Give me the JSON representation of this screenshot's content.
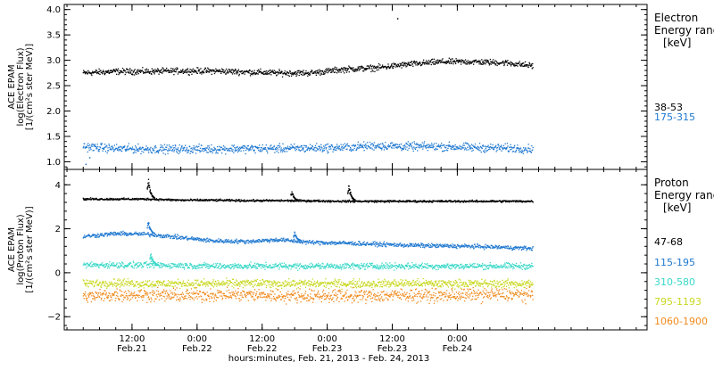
{
  "chart_data": [
    {
      "type": "scatter",
      "panel": "electron",
      "ylabel": [
        "ACE EPAM",
        "log(Electron Flux)",
        "[1/(cm²s ster MeV)]"
      ],
      "ylim": [
        0.85,
        4.1
      ],
      "yticks": [
        "1.0",
        "1.5",
        "2.0",
        "2.5",
        "3.0",
        "3.5",
        "4.0"
      ],
      "ytick_values": [
        1.0,
        1.5,
        2.0,
        2.5,
        3.0,
        3.5,
        4.0
      ],
      "legend_title": [
        "Electron",
        "Energy ranges",
        "[keV]"
      ],
      "legend_placement": "right",
      "series": [
        {
          "name": "38-53",
          "color": "#000000",
          "x": [
            0,
            6,
            12,
            18,
            24,
            30,
            36,
            42,
            48,
            54,
            60,
            66,
            72,
            78,
            83
          ],
          "values": [
            2.75,
            2.78,
            2.78,
            2.79,
            2.79,
            2.77,
            2.75,
            2.75,
            2.82,
            2.85,
            2.92,
            2.97,
            2.97,
            2.95,
            2.89
          ]
        },
        {
          "name": "175-315",
          "color": "#1f78d0",
          "x": [
            0,
            6,
            12,
            18,
            24,
            30,
            36,
            42,
            48,
            54,
            60,
            66,
            72,
            78,
            83
          ],
          "values": [
            1.3,
            1.26,
            1.25,
            1.25,
            1.25,
            1.26,
            1.26,
            1.27,
            1.28,
            1.32,
            1.3,
            1.3,
            1.28,
            1.27,
            1.25
          ]
        }
      ],
      "outliers": [
        {
          "series": "38-53",
          "x": 58,
          "y": 3.82
        },
        {
          "series": "175-315",
          "x": 0.5,
          "y": 0.95
        },
        {
          "series": "175-315",
          "x": 1.2,
          "y": 1.08
        }
      ]
    },
    {
      "type": "scatter",
      "panel": "proton",
      "ylabel": [
        "ACE EPAM",
        "log(Proton Flux)",
        "[1/(cm²s ster MeV)]"
      ],
      "ylim": [
        -2.6,
        4.7
      ],
      "yticks": [
        "−2",
        "0",
        "2",
        "4"
      ],
      "ytick_values": [
        -2,
        0,
        2,
        4
      ],
      "legend_title": [
        "Proton",
        "Energy ranges",
        "[keV]"
      ],
      "legend_placement": "right",
      "series": [
        {
          "name": "47-68",
          "color": "#000000",
          "x": [
            0,
            6,
            12,
            18,
            24,
            30,
            36,
            42,
            48,
            54,
            60,
            66,
            72,
            78,
            83
          ],
          "values": [
            3.35,
            3.35,
            3.35,
            3.3,
            3.3,
            3.28,
            3.28,
            3.27,
            3.25,
            3.25,
            3.25,
            3.25,
            3.25,
            3.25,
            3.25
          ]
        },
        {
          "name": "115-195",
          "color": "#1f78d0",
          "x": [
            0,
            6,
            12,
            18,
            24,
            30,
            36,
            42,
            48,
            54,
            60,
            66,
            72,
            78,
            83
          ],
          "values": [
            1.65,
            1.78,
            1.75,
            1.6,
            1.45,
            1.42,
            1.5,
            1.38,
            1.35,
            1.3,
            1.25,
            1.22,
            1.2,
            1.15,
            1.1
          ]
        },
        {
          "name": "310-580",
          "color": "#3ad8c8",
          "x": [
            0,
            6,
            12,
            18,
            24,
            30,
            36,
            42,
            48,
            54,
            60,
            66,
            72,
            78,
            83
          ],
          "values": [
            0.35,
            0.35,
            0.35,
            0.33,
            0.3,
            0.3,
            0.3,
            0.3,
            0.3,
            0.3,
            0.3,
            0.3,
            0.3,
            0.3,
            0.3
          ]
        },
        {
          "name": "795-1193",
          "color": "#c8d820",
          "x": [
            0,
            6,
            12,
            18,
            24,
            30,
            36,
            42,
            48,
            54,
            60,
            66,
            72,
            78,
            83
          ],
          "values": [
            -0.5,
            -0.45,
            -0.5,
            -0.5,
            -0.5,
            -0.48,
            -0.5,
            -0.5,
            -0.5,
            -0.5,
            -0.48,
            -0.5,
            -0.5,
            -0.5,
            -0.5
          ]
        },
        {
          "name": "1060-1900",
          "color": "#f08a1c",
          "x": [
            0,
            6,
            12,
            18,
            24,
            30,
            36,
            42,
            48,
            54,
            60,
            66,
            72,
            78,
            83
          ],
          "values": [
            -1.1,
            -1.0,
            -1.0,
            -1.05,
            -1.0,
            -1.0,
            -1.05,
            -1.05,
            -1.05,
            -1.05,
            -1.0,
            -1.05,
            -1.0,
            -1.0,
            -1.0
          ]
        }
      ],
      "spikes": [
        {
          "series": "47-68",
          "x": 12,
          "peak": 4.35
        },
        {
          "series": "47-68",
          "x": 38.5,
          "peak": 3.75
        },
        {
          "series": "47-68",
          "x": 49,
          "peak": 4.1
        },
        {
          "series": "115-195",
          "x": 12,
          "peak": 2.4
        },
        {
          "series": "115-195",
          "x": 39,
          "peak": 1.9
        },
        {
          "series": "310-580",
          "x": 12.5,
          "peak": 0.9
        }
      ]
    }
  ],
  "x_axis": {
    "xlim": [
      -3.5,
      104
    ],
    "ticks": [
      {
        "x": 9,
        "time": "12:00",
        "date": "Feb.21"
      },
      {
        "x": 21,
        "time": "0:00",
        "date": "Feb.22"
      },
      {
        "x": 33,
        "time": "12:00",
        "date": "Feb.22"
      },
      {
        "x": 45,
        "time": "0:00",
        "date": "Feb.23"
      },
      {
        "x": 57,
        "time": "12:00",
        "date": "Feb.23"
      },
      {
        "x": 69,
        "time": "0:00",
        "date": "Feb.24"
      }
    ],
    "minor_step_hours": 3,
    "xlabel": "hours:minutes, Feb. 21, 2013 - Feb. 24, 2013"
  }
}
